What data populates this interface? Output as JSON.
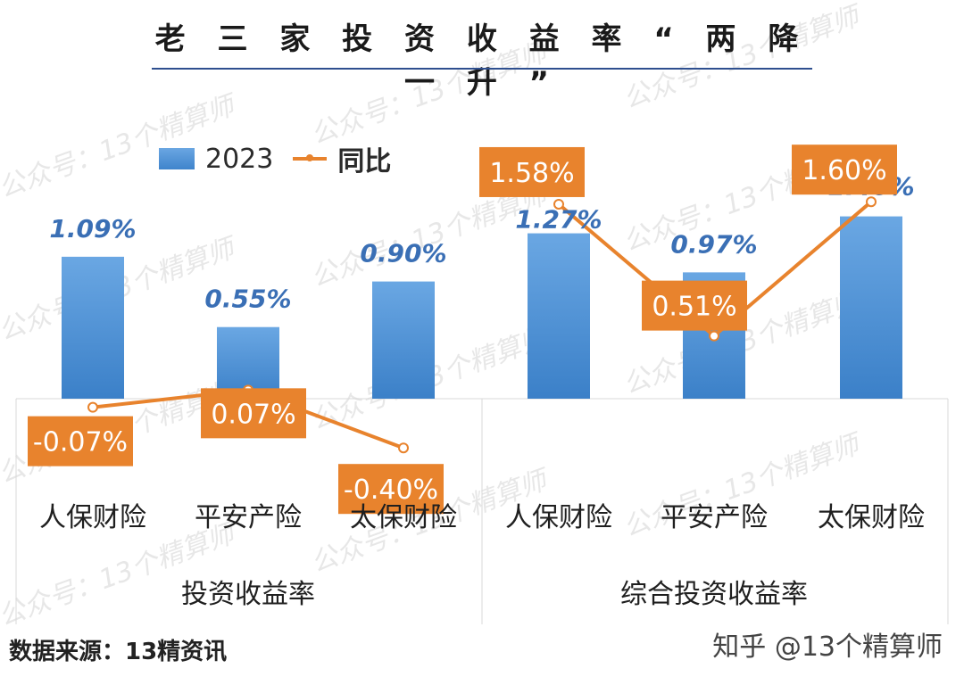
{
  "title": "老 三 家 投 资 收 益 率 “ 两 降 一 升 ”",
  "legend": {
    "bar": "2023",
    "line": "同比"
  },
  "footer": {
    "source": "数据来源：13精资讯",
    "credit": "知乎 @13个精算师"
  },
  "watermark": "公众号：13个精算师",
  "colors": {
    "bar": "#4a8fd6",
    "line": "#e8832d",
    "bar_label": "#3a6fb5",
    "line_label_bg": "#e8832d"
  },
  "chart_data": {
    "type": "bar",
    "groups": [
      "投资收益率",
      "综合投资收益率"
    ],
    "categories": [
      "人保财险",
      "平安产险",
      "太保财险",
      "人保财险",
      "平安产险",
      "太保财险"
    ],
    "series": [
      {
        "name": "2023",
        "type": "bar",
        "values": [
          1.09,
          0.55,
          0.9,
          1.27,
          0.97,
          1.4
        ],
        "labels": [
          "1.09%",
          "0.55%",
          "0.90%",
          "1.27%",
          "0.97%",
          "1.40%"
        ]
      },
      {
        "name": "同比",
        "type": "line",
        "segments": [
          [
            0,
            1,
            2
          ],
          [
            3,
            4,
            5
          ]
        ],
        "values": [
          -0.07,
          0.07,
          -0.4,
          1.58,
          0.51,
          1.6
        ],
        "labels": [
          "-0.07%",
          "0.07%",
          "-0.40%",
          "1.58%",
          "0.51%",
          "1.60%"
        ]
      }
    ]
  }
}
